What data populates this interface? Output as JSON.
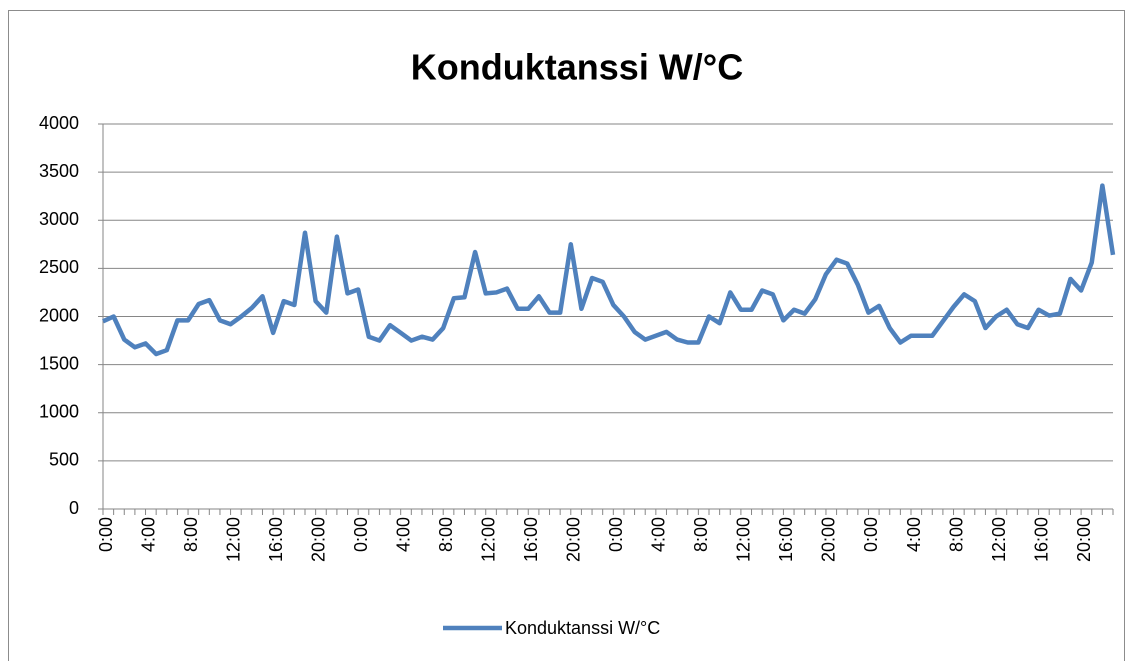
{
  "chart_data": {
    "type": "line",
    "title": "Konduktanssi W/°C",
    "categories": [
      "0:00",
      null,
      null,
      null,
      "4:00",
      null,
      null,
      null,
      "8:00",
      null,
      null,
      null,
      "12:00",
      null,
      null,
      null,
      "16:00",
      null,
      null,
      null,
      "20:00",
      null,
      null,
      null,
      "0:00",
      null,
      null,
      null,
      "4:00",
      null,
      null,
      null,
      "8:00",
      null,
      null,
      null,
      "12:00",
      null,
      null,
      null,
      "16:00",
      null,
      null,
      null,
      "20:00",
      null,
      null,
      null,
      "0:00",
      null,
      null,
      null,
      "4:00",
      null,
      null,
      null,
      "8:00",
      null,
      null,
      null,
      "12:00",
      null,
      null,
      null,
      "16:00",
      null,
      null,
      null,
      "20:00",
      null,
      null,
      null,
      "0:00",
      null,
      null,
      null,
      "4:00",
      null,
      null,
      null,
      "8:00",
      null,
      null,
      null,
      "12:00",
      null,
      null,
      null,
      "16:00",
      null,
      null,
      null,
      "20:00",
      null,
      null,
      null
    ],
    "series": [
      {
        "name": "Konduktanssi W/°C",
        "color": "#4f81bd",
        "values": [
          1950,
          2000,
          1760,
          1680,
          1720,
          1610,
          1650,
          1960,
          1960,
          2130,
          2170,
          1960,
          1920,
          2000,
          2090,
          2210,
          1830,
          2160,
          2120,
          2870,
          2160,
          2040,
          2830,
          2240,
          2280,
          1790,
          1750,
          1910,
          1830,
          1750,
          1790,
          1760,
          1880,
          2190,
          2200,
          2670,
          2240,
          2250,
          2290,
          2080,
          2080,
          2210,
          2040,
          2040,
          2750,
          2080,
          2400,
          2360,
          2120,
          2000,
          1840,
          1760,
          1800,
          1840,
          1760,
          1730,
          1730,
          2000,
          1930,
          2250,
          2070,
          2070,
          2270,
          2230,
          1960,
          2070,
          2030,
          2180,
          2440,
          2590,
          2550,
          2330,
          2040,
          2110,
          1880,
          1730,
          1800,
          1800,
          1800,
          1950,
          2100,
          2230,
          2160,
          1880,
          2000,
          2070,
          1920,
          1880,
          2070,
          2010,
          2030,
          2390,
          2270,
          2560,
          3360,
          2640
        ]
      }
    ],
    "ylim": [
      0,
      4000
    ],
    "yticks": [
      0,
      500,
      1000,
      1500,
      2000,
      2500,
      3000,
      3500,
      4000
    ],
    "grid": true,
    "legend": "bottom"
  }
}
